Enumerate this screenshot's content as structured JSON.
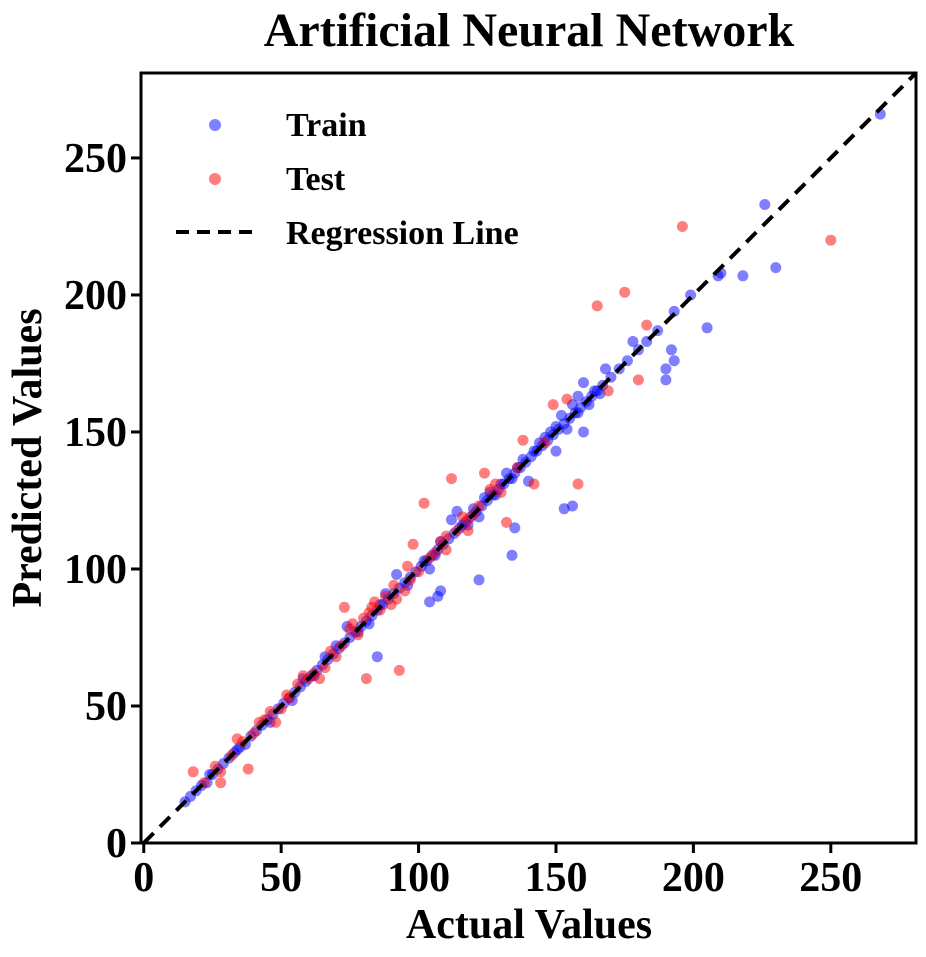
{
  "chart_data": {
    "type": "scatter",
    "title": "Artificial Neural Network",
    "xlabel": "Actual Values",
    "ylabel": "Predicted Values",
    "xlim": [
      -1,
      281
    ],
    "ylim": [
      0,
      281
    ],
    "xticks": [
      0,
      50,
      100,
      150,
      200,
      250
    ],
    "yticks": [
      0,
      50,
      100,
      150,
      200,
      250
    ],
    "grid": false,
    "legend_position": "top-left",
    "series": [
      {
        "name": "Train",
        "color": "#0000ff",
        "alpha": 0.5,
        "points": [
          [
            15,
            15
          ],
          [
            17,
            17
          ],
          [
            19,
            19
          ],
          [
            21,
            21
          ],
          [
            23,
            22
          ],
          [
            25,
            25
          ],
          [
            27,
            27
          ],
          [
            29,
            29
          ],
          [
            31,
            31
          ],
          [
            33,
            33
          ],
          [
            35,
            35
          ],
          [
            37,
            36
          ],
          [
            39,
            39
          ],
          [
            41,
            41
          ],
          [
            43,
            43
          ],
          [
            45,
            45
          ],
          [
            47,
            47
          ],
          [
            49,
            49
          ],
          [
            51,
            51
          ],
          [
            53,
            53
          ],
          [
            55,
            55
          ],
          [
            57,
            57
          ],
          [
            59,
            59
          ],
          [
            61,
            61
          ],
          [
            63,
            63
          ],
          [
            65,
            65
          ],
          [
            67,
            67
          ],
          [
            69,
            69
          ],
          [
            71,
            71
          ],
          [
            73,
            73
          ],
          [
            75,
            75
          ],
          [
            77,
            77
          ],
          [
            79,
            79
          ],
          [
            81,
            81
          ],
          [
            83,
            83
          ],
          [
            85,
            85
          ],
          [
            87,
            87
          ],
          [
            89,
            89
          ],
          [
            91,
            91
          ],
          [
            93,
            93
          ],
          [
            95,
            95
          ],
          [
            97,
            97
          ],
          [
            99,
            99
          ],
          [
            101,
            101
          ],
          [
            103,
            103
          ],
          [
            105,
            105
          ],
          [
            107,
            107
          ],
          [
            109,
            109
          ],
          [
            111,
            111
          ],
          [
            113,
            113
          ],
          [
            115,
            115
          ],
          [
            117,
            117
          ],
          [
            119,
            119
          ],
          [
            121,
            121
          ],
          [
            123,
            123
          ],
          [
            125,
            125
          ],
          [
            127,
            127
          ],
          [
            129,
            129
          ],
          [
            131,
            131
          ],
          [
            133,
            133
          ],
          [
            135,
            135
          ],
          [
            137,
            137
          ],
          [
            139,
            139
          ],
          [
            141,
            141
          ],
          [
            143,
            143
          ],
          [
            145,
            145
          ],
          [
            147,
            147
          ],
          [
            149,
            149
          ],
          [
            151,
            151
          ],
          [
            153,
            153
          ],
          [
            155,
            155
          ],
          [
            157,
            157
          ],
          [
            159,
            159
          ],
          [
            161,
            161
          ],
          [
            163,
            163
          ],
          [
            165,
            165
          ],
          [
            167,
            167
          ],
          [
            170,
            170
          ],
          [
            173,
            173
          ],
          [
            176,
            176
          ],
          [
            180,
            180
          ],
          [
            183,
            183
          ],
          [
            187,
            187
          ],
          [
            193,
            194
          ],
          [
            199,
            200
          ],
          [
            209,
            207
          ],
          [
            268,
            266
          ],
          [
            46,
            44
          ],
          [
            58,
            60
          ],
          [
            66,
            68
          ],
          [
            74,
            79
          ],
          [
            78,
            77
          ],
          [
            88,
            91
          ],
          [
            92,
            98
          ],
          [
            96,
            94
          ],
          [
            102,
            103
          ],
          [
            108,
            110
          ],
          [
            112,
            118
          ],
          [
            114,
            121
          ],
          [
            118,
            116
          ],
          [
            124,
            126
          ],
          [
            126,
            128
          ],
          [
            130,
            131
          ],
          [
            134,
            133
          ],
          [
            138,
            140
          ],
          [
            142,
            143
          ],
          [
            146,
            148
          ],
          [
            150,
            152
          ],
          [
            152,
            156
          ],
          [
            154,
            151
          ],
          [
            156,
            160
          ],
          [
            158,
            163
          ],
          [
            160,
            168
          ],
          [
            162,
            160
          ],
          [
            164,
            165
          ],
          [
            166,
            164
          ],
          [
            168,
            173
          ],
          [
            24,
            25
          ],
          [
            34,
            34
          ],
          [
            54,
            52
          ],
          [
            62,
            61
          ],
          [
            70,
            72
          ],
          [
            82,
            80
          ],
          [
            86,
            87
          ],
          [
            104,
            100
          ],
          [
            106,
            105
          ],
          [
            116,
            116
          ],
          [
            120,
            122
          ],
          [
            122,
            119
          ],
          [
            128,
            127
          ],
          [
            132,
            135
          ],
          [
            136,
            137
          ],
          [
            144,
            146
          ],
          [
            148,
            150
          ],
          [
            158,
            157
          ],
          [
            85,
            68
          ],
          [
            104,
            88
          ],
          [
            107,
            90
          ],
          [
            108,
            92
          ],
          [
            122,
            96
          ],
          [
            134,
            105
          ],
          [
            135,
            115
          ],
          [
            140,
            132
          ],
          [
            150,
            143
          ],
          [
            153,
            122
          ],
          [
            156,
            123
          ],
          [
            160,
            150
          ],
          [
            178,
            183
          ],
          [
            190,
            173
          ],
          [
            190,
            169
          ],
          [
            192,
            180
          ],
          [
            193,
            176
          ],
          [
            205,
            188
          ],
          [
            210,
            208
          ],
          [
            218,
            207
          ],
          [
            226,
            233
          ],
          [
            230,
            210
          ]
        ]
      },
      {
        "name": "Test",
        "color": "#ff0000",
        "alpha": 0.5,
        "points": [
          [
            18,
            26
          ],
          [
            22,
            22
          ],
          [
            28,
            26
          ],
          [
            28,
            22
          ],
          [
            34,
            38
          ],
          [
            36,
            37
          ],
          [
            38,
            27
          ],
          [
            40,
            40
          ],
          [
            42,
            44
          ],
          [
            44,
            45
          ],
          [
            48,
            44
          ],
          [
            50,
            49
          ],
          [
            53,
            53
          ],
          [
            56,
            58
          ],
          [
            58,
            61
          ],
          [
            62,
            62
          ],
          [
            64,
            60
          ],
          [
            66,
            64
          ],
          [
            68,
            70
          ],
          [
            72,
            72
          ],
          [
            73,
            86
          ],
          [
            75,
            78
          ],
          [
            78,
            76
          ],
          [
            80,
            82
          ],
          [
            81,
            60
          ],
          [
            82,
            84
          ],
          [
            83,
            86
          ],
          [
            84,
            88
          ],
          [
            86,
            85
          ],
          [
            88,
            90
          ],
          [
            90,
            87
          ],
          [
            91,
            94
          ],
          [
            93,
            63
          ],
          [
            95,
            92
          ],
          [
            97,
            96
          ],
          [
            98,
            109
          ],
          [
            100,
            99
          ],
          [
            102,
            124
          ],
          [
            104,
            104
          ],
          [
            106,
            106
          ],
          [
            108,
            110
          ],
          [
            110,
            112
          ],
          [
            112,
            133
          ],
          [
            114,
            114
          ],
          [
            116,
            119
          ],
          [
            118,
            118
          ],
          [
            120,
            120
          ],
          [
            122,
            123
          ],
          [
            124,
            135
          ],
          [
            126,
            129
          ],
          [
            128,
            131
          ],
          [
            130,
            128
          ],
          [
            132,
            117
          ],
          [
            138,
            147
          ],
          [
            142,
            131
          ],
          [
            146,
            146
          ],
          [
            149,
            160
          ],
          [
            154,
            162
          ],
          [
            158,
            131
          ],
          [
            165,
            196
          ],
          [
            169,
            165
          ],
          [
            175,
            201
          ],
          [
            180,
            169
          ],
          [
            183,
            189
          ],
          [
            196,
            225
          ],
          [
            250,
            220
          ],
          [
            26,
            28
          ],
          [
            32,
            32
          ],
          [
            46,
            48
          ],
          [
            52,
            54
          ],
          [
            60,
            60
          ],
          [
            70,
            68
          ],
          [
            76,
            80
          ],
          [
            92,
            89
          ],
          [
            96,
            101
          ],
          [
            110,
            107
          ],
          [
            118,
            114
          ],
          [
            136,
            137
          ]
        ]
      }
    ],
    "regression_line": {
      "name": "Regression Line",
      "style": "dashed",
      "color": "#000000",
      "x": [
        0,
        281
      ],
      "y": [
        0,
        281
      ]
    }
  }
}
